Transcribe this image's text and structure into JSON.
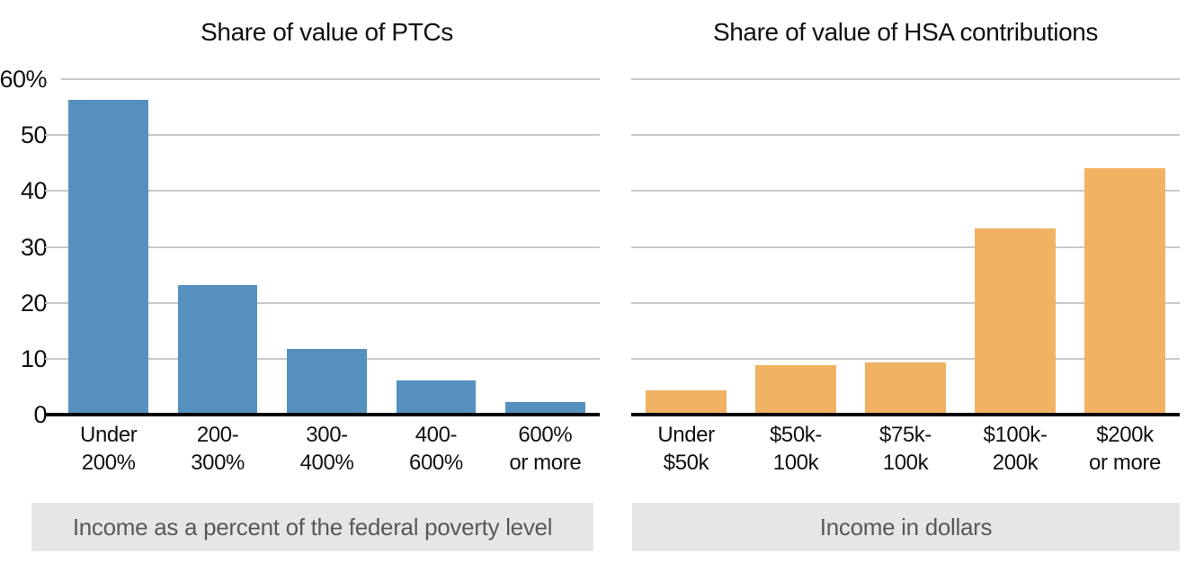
{
  "chart_data": [
    {
      "type": "bar",
      "title": "Share of value of PTCs",
      "categories": [
        "Under\n200%",
        "200-\n300%",
        "300-\n400%",
        "400-\n600%",
        "600%\nor more"
      ],
      "values": [
        56.3,
        23.1,
        11.8,
        6.1,
        2.3
      ],
      "bar_color": "#5590BF",
      "caption": "Income as a percent of the federal poverty level",
      "y_ticks": [
        "60%",
        "50",
        "40",
        "30",
        "20",
        "10",
        "0"
      ],
      "ylim": [
        0,
        60
      ],
      "grid": true,
      "show_y_axis_labels": true,
      "legend_position": "none"
    },
    {
      "type": "bar",
      "title": "Share of value of HSA contributions",
      "categories": [
        "Under\n$50k",
        "$50k-\n100k",
        "$75k-\n100k",
        "$100k-\n200k",
        "$200k\nor more"
      ],
      "values": [
        4.4,
        8.8,
        9.4,
        33.3,
        44.0
      ],
      "bar_color": "#F2B264",
      "caption": "Income in dollars",
      "y_ticks": [],
      "ylim": [
        0,
        60
      ],
      "grid": true,
      "show_y_axis_labels": false,
      "legend_position": "none"
    }
  ],
  "colors": {
    "blue_bar": "#5590BF",
    "orange_bar": "#F2B264",
    "gridline": "#C9C9C9",
    "axis": "#000000",
    "caption_background": "#E6E6E6",
    "caption_text": "#58595B",
    "label_text": "#111111"
  }
}
